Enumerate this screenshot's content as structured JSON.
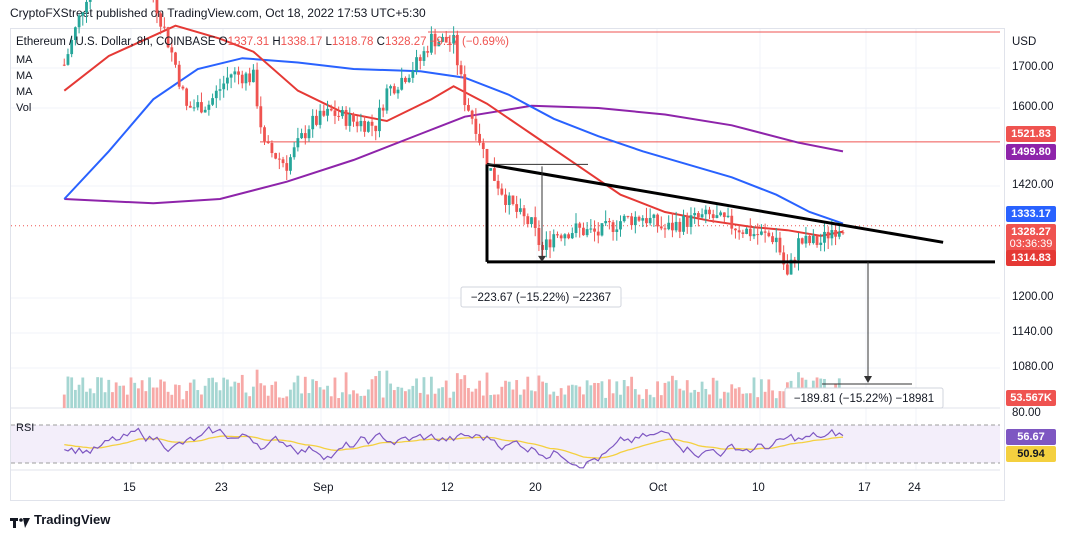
{
  "header": {
    "published": "CryptoFXStreet published on TradingView.com, Oct 18, 2022 17:53 UTC+5:30"
  },
  "legend": {
    "symbol": "Ethereum / U.S. Dollar, 8h, COINBASE",
    "o_label": "O",
    "o_value": "1337.31",
    "h_label": "H",
    "h_value": "1338.17",
    "l_label": "L",
    "l_value": "1318.78",
    "c_label": "C",
    "c_value": "1328.27",
    "change": "−9.17 (−0.69%)"
  },
  "indicators": [
    "MA",
    "MA",
    "MA",
    "Vol"
  ],
  "rsi_label": "RSI",
  "currency": "USD",
  "logo_text": "TradingView",
  "colors": {
    "up": "#26a69a",
    "down": "#ef5350",
    "ma_red": "#e53935",
    "ma_blue": "#2962ff",
    "ma_purple": "#8e24aa",
    "rsi": "#7e57c2",
    "rsi_ma": "#f4d03f",
    "line": "#000000"
  },
  "chart_data": {
    "type": "candlestick",
    "price_axis": {
      "ticks": [
        "1700.00",
        "1600.00",
        "1420.00",
        "1200.00",
        "1140.00",
        "1080.00",
        "80.00"
      ]
    },
    "x_ticks": [
      "15",
      "23",
      "Sep",
      "12",
      "20",
      "Oct",
      "10",
      "17",
      "24"
    ],
    "price_tags": [
      {
        "label": "1521.83",
        "value": 1521.83,
        "color": "#ef5350"
      },
      {
        "label": "1499.80",
        "value": 1499.8,
        "color": "#8e24aa"
      },
      {
        "label": "1333.17",
        "value": 1333.17,
        "color": "#2962ff"
      },
      {
        "label": "1328.27",
        "sub": "03:36:39",
        "value": 1328.27,
        "color": "#ef5350"
      },
      {
        "label": "1314.83",
        "value": 1314.83,
        "color": "#e53935"
      },
      {
        "label": "53.567K",
        "color": "#ef5350"
      }
    ],
    "rsi_tags": [
      {
        "label": "56.67",
        "color": "#7e57c2"
      },
      {
        "label": "50.94",
        "color": "#f4d03f"
      }
    ],
    "annotations": [
      {
        "text": "−223.67 (−15.22%) −22367"
      },
      {
        "text": "−189.81 (−15.22%) −18981"
      }
    ],
    "horizontal_levels": [
      1790,
      1521.83
    ],
    "pattern": "descending triangle",
    "triangle": {
      "upper_start": {
        "date": "Sep 16",
        "price": 1470
      },
      "upper_end": {
        "date": "Oct 27",
        "price": 1290
      },
      "base_price": 1245
    },
    "close_path": [
      [
        "Aug 9",
        1700
      ],
      [
        "Aug 11",
        1860
      ],
      [
        "Aug 13",
        1980
      ],
      [
        "Aug 14",
        1930
      ],
      [
        "Aug 17",
        1860
      ],
      [
        "Aug 19",
        1700
      ],
      [
        "Aug 20",
        1600
      ],
      [
        "Aug 22",
        1610
      ],
      [
        "Aug 24",
        1680
      ],
      [
        "Aug 26",
        1670
      ],
      [
        "Aug 27",
        1510
      ],
      [
        "Aug 29",
        1470
      ],
      [
        "Aug 31",
        1560
      ],
      [
        "Sep 2",
        1590
      ],
      [
        "Sep 4",
        1570
      ],
      [
        "Sep 6",
        1560
      ],
      [
        "Sep 7",
        1640
      ],
      [
        "Sep 8",
        1660
      ],
      [
        "Sep 10",
        1710
      ],
      [
        "Sep 11",
        1760
      ],
      [
        "Sep 13",
        1750
      ],
      [
        "Sep 14",
        1620
      ],
      [
        "Sep 15",
        1560
      ],
      [
        "Sep 16",
        1470
      ],
      [
        "Sep 18",
        1380
      ],
      [
        "Sep 19",
        1350
      ],
      [
        "Sep 20",
        1330
      ],
      [
        "Sep 21",
        1270
      ],
      [
        "Sep 22",
        1310
      ],
      [
        "Sep 24",
        1320
      ],
      [
        "Sep 26",
        1310
      ],
      [
        "Sep 28",
        1340
      ],
      [
        "Sep 30",
        1350
      ],
      [
        "Oct 2",
        1320
      ],
      [
        "Oct 4",
        1340
      ],
      [
        "Oct 6",
        1350
      ],
      [
        "Oct 8",
        1330
      ],
      [
        "Oct 10",
        1310
      ],
      [
        "Oct 12",
        1300
      ],
      [
        "Oct 13",
        1210
      ],
      [
        "Oct 14",
        1290
      ],
      [
        "Oct 16",
        1290
      ],
      [
        "Oct 17",
        1320
      ],
      [
        "Oct 18",
        1328.27
      ]
    ],
    "ma_red": [
      [
        "Aug 9",
        1640
      ],
      [
        "Aug 13",
        1720
      ],
      [
        "Aug 19",
        1790
      ],
      [
        "Aug 23",
        1760
      ],
      [
        "Aug 26",
        1730
      ],
      [
        "Aug 30",
        1640
      ],
      [
        "Sep 3",
        1590
      ],
      [
        "Sep 7",
        1570
      ],
      [
        "Sep 11",
        1620
      ],
      [
        "Sep 13",
        1650
      ],
      [
        "Sep 16",
        1610
      ],
      [
        "Sep 20",
        1540
      ],
      [
        "Sep 24",
        1470
      ],
      [
        "Sep 28",
        1400
      ],
      [
        "Oct 2",
        1360
      ],
      [
        "Oct 6",
        1340
      ],
      [
        "Oct 10",
        1325
      ],
      [
        "Oct 13",
        1318
      ],
      [
        "Oct 16",
        1305
      ],
      [
        "Oct 18",
        1314.83
      ]
    ],
    "ma_blue": [
      [
        "Aug 9",
        1390
      ],
      [
        "Aug 13",
        1500
      ],
      [
        "Aug 17",
        1620
      ],
      [
        "Aug 21",
        1690
      ],
      [
        "Aug 25",
        1715
      ],
      [
        "Aug 30",
        1705
      ],
      [
        "Sep 4",
        1690
      ],
      [
        "Sep 10",
        1685
      ],
      [
        "Sep 14",
        1670
      ],
      [
        "Sep 18",
        1630
      ],
      [
        "Sep 22",
        1575
      ],
      [
        "Sep 26",
        1535
      ],
      [
        "Sep 30",
        1500
      ],
      [
        "Oct 4",
        1470
      ],
      [
        "Oct 8",
        1440
      ],
      [
        "Oct 12",
        1400
      ],
      [
        "Oct 15",
        1360
      ],
      [
        "Oct 18",
        1333.17
      ]
    ],
    "ma_purple": [
      [
        "Aug 9",
        1390
      ],
      [
        "Aug 17",
        1380
      ],
      [
        "Aug 23",
        1390
      ],
      [
        "Aug 29",
        1430
      ],
      [
        "Sep 4",
        1480
      ],
      [
        "Sep 10",
        1540
      ],
      [
        "Sep 14",
        1580
      ],
      [
        "Sep 20",
        1605
      ],
      [
        "Sep 26",
        1600
      ],
      [
        "Oct 2",
        1585
      ],
      [
        "Oct 8",
        1560
      ],
      [
        "Oct 14",
        1520
      ],
      [
        "Oct 18",
        1499.8
      ]
    ]
  }
}
